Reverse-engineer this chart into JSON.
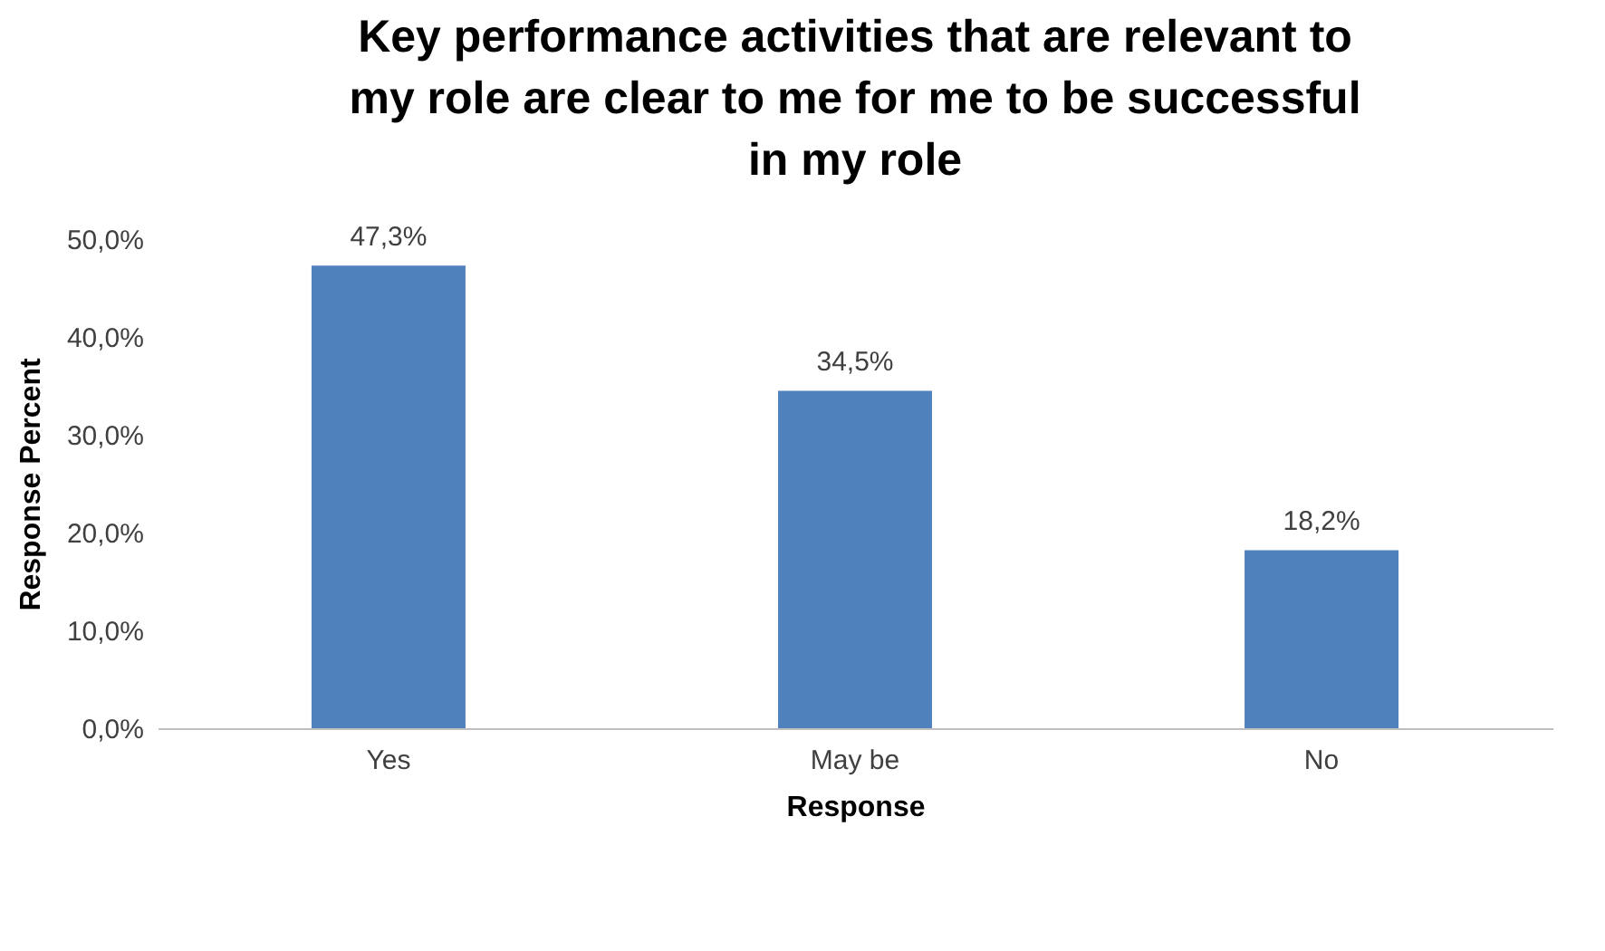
{
  "chart_data": {
    "type": "bar",
    "title": "Key performance activities that are relevant to my role are clear to me for me to be successful in my role",
    "xlabel": "Response",
    "ylabel": "Response Percent",
    "categories": [
      "Yes",
      "May be",
      "No"
    ],
    "values": [
      47.3,
      34.5,
      18.2
    ],
    "value_labels": [
      "47,3%",
      "34,5%",
      "18,2%"
    ],
    "color": "#4f81bd",
    "ylim": [
      0,
      50
    ],
    "yticks": [
      {
        "value": 0,
        "label": "0,0%"
      },
      {
        "value": 10,
        "label": "10,0%"
      },
      {
        "value": 20,
        "label": "20,0%"
      },
      {
        "value": 30,
        "label": "30,0%"
      },
      {
        "value": 40,
        "label": "40,0%"
      },
      {
        "value": 50,
        "label": "50,0%"
      }
    ],
    "grid": false
  }
}
